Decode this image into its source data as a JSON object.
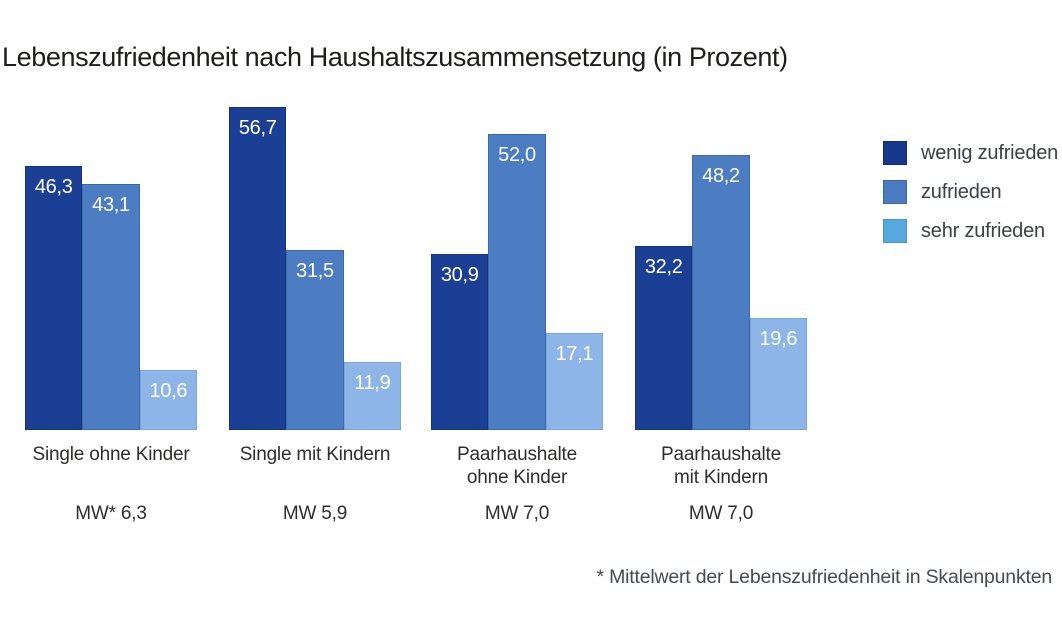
{
  "title": "Lebenszufriedenheit nach Haushaltszusammensetzung (in Prozent)",
  "footnote": "* Mittelwert der Lebenszufriedenheit in Skalenpunkten",
  "chart_data": {
    "type": "bar",
    "title": "Lebenszufriedenheit nach Haushaltszusammensetzung (in Prozent)",
    "unit": "percent",
    "categories": [
      "Single ohne Kinder",
      "Single mit Kindern",
      "Paarhaushalte ohne Kinder",
      "Paarhaushalte mit Kindern"
    ],
    "category_label_lines": [
      [
        "Single ohne Kinder"
      ],
      [
        "Single mit Kindern"
      ],
      [
        "Paarhaushalte",
        "ohne Kinder"
      ],
      [
        "Paarhaushalte",
        "mit Kindern"
      ]
    ],
    "category_sublabels": [
      "MW* 6,3",
      "MW 5,9",
      "MW 7,0",
      "MW 7,0"
    ],
    "series": [
      {
        "name": "wenig zufrieden",
        "key": "wenig-zufrieden",
        "color": "#1c3f96",
        "border_color": "#16337d",
        "values": [
          46.3,
          56.7,
          30.9,
          32.2
        ]
      },
      {
        "name": "zufrieden",
        "key": "zufrieden",
        "color": "#4c7dc2",
        "border_color": "#3b68aa",
        "values": [
          43.1,
          31.5,
          52.0,
          48.2
        ]
      },
      {
        "name": "sehr zufrieden",
        "key": "sehr-zufrieden",
        "color": "#8db5e7",
        "border_color": "#79a6da",
        "values": [
          10.6,
          11.9,
          17.1,
          19.6
        ]
      }
    ],
    "value_label_decimal_separator": ",",
    "ylim": [
      0,
      60
    ],
    "grid": false,
    "axes_visible": false,
    "legend_position": "right"
  },
  "legend": {
    "items": [
      {
        "label": "wenig zufrieden",
        "color": "#16388c",
        "border_color": "#102c72"
      },
      {
        "label": "zufrieden",
        "color": "#4a7ac2",
        "border_color": "#3a66a8"
      },
      {
        "label": "sehr zufrieden",
        "color": "#57a8de",
        "border_color": "#4496d2"
      }
    ]
  }
}
